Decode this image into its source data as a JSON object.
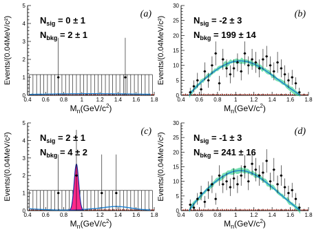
{
  "chart_data": [
    {
      "type": "scatter",
      "panel": "(a)",
      "xlabel": "M",
      "xlabel_sub": "n",
      "xlabel_unit": "(GeV/c",
      "xlabel_sup": "2",
      "xlabel_end": ")",
      "ylabel": "Events/(0.04MeV/c²)",
      "xlim": [
        0.4,
        1.8
      ],
      "ylim": [
        0,
        5
      ],
      "xticks": [
        "0.4",
        "0.6",
        "0.8",
        "1",
        "1.2",
        "1.4",
        "1.6",
        "1.8"
      ],
      "yticks": [
        "0",
        "1",
        "2",
        "3",
        "4",
        "5"
      ],
      "annotations": {
        "nsig_label": "N",
        "nsig_sub": "sig",
        "nsig_value": "=     0  ±  1",
        "nbkg_label": "N",
        "nbkg_sub": "bkg",
        "nbkg_value": "=     2  ±  1"
      },
      "points": [
        {
          "x": 0.74,
          "y": 1.0,
          "err": 2.2
        },
        {
          "x": 1.48,
          "y": 1.0,
          "err": 2.2
        }
      ],
      "zero_err_band": 1.15,
      "fit": "flat",
      "fit_level": 0.08
    },
    {
      "type": "scatter",
      "panel": "(b)",
      "xlabel": "M",
      "xlabel_sub": "n",
      "xlabel_unit": "(GeV/c",
      "xlabel_sup": "2",
      "xlabel_end": ")",
      "ylabel": "Events/(0.04MeV/c²)",
      "xlim": [
        0.4,
        1.8
      ],
      "ylim": [
        0,
        30
      ],
      "xticks": [
        "0.4",
        "0.6",
        "0.8",
        "1",
        "1.2",
        "1.4",
        "1.6",
        "1.8"
      ],
      "yticks": [
        "0",
        "5",
        "10",
        "15",
        "20",
        "25",
        "30"
      ],
      "annotations": {
        "nsig_label": "N",
        "nsig_sub": "sig",
        "nsig_value": "=     -2  ±  3",
        "nbkg_label": "N",
        "nbkg_sub": "bkg",
        "nbkg_value": "=   199  ±  14"
      },
      "points": [
        {
          "x": 0.5,
          "y": 1,
          "err": 1.5
        },
        {
          "x": 0.54,
          "y": 3,
          "err": 2
        },
        {
          "x": 0.58,
          "y": 5,
          "err": 2.5
        },
        {
          "x": 0.62,
          "y": 2,
          "err": 2
        },
        {
          "x": 0.66,
          "y": 8,
          "err": 3
        },
        {
          "x": 0.7,
          "y": 5,
          "err": 2.5
        },
        {
          "x": 0.74,
          "y": 10,
          "err": 3
        },
        {
          "x": 0.78,
          "y": 14,
          "err": 4
        },
        {
          "x": 0.82,
          "y": 4,
          "err": 2.5
        },
        {
          "x": 0.86,
          "y": 12,
          "err": 3.5
        },
        {
          "x": 0.9,
          "y": 9,
          "err": 3
        },
        {
          "x": 0.94,
          "y": 7,
          "err": 3
        },
        {
          "x": 0.98,
          "y": 9,
          "err": 3
        },
        {
          "x": 1.02,
          "y": 11,
          "err": 3
        },
        {
          "x": 1.06,
          "y": 8,
          "err": 3
        },
        {
          "x": 1.1,
          "y": 14,
          "err": 4
        },
        {
          "x": 1.14,
          "y": 10,
          "err": 3
        },
        {
          "x": 1.18,
          "y": 12,
          "err": 3.5
        },
        {
          "x": 1.22,
          "y": 11,
          "err": 3.5
        },
        {
          "x": 1.26,
          "y": 9,
          "err": 3
        },
        {
          "x": 1.3,
          "y": 12,
          "err": 3.5
        },
        {
          "x": 1.34,
          "y": 13,
          "err": 3.5
        },
        {
          "x": 1.38,
          "y": 10,
          "err": 3
        },
        {
          "x": 1.42,
          "y": 8,
          "err": 3
        },
        {
          "x": 1.46,
          "y": 11,
          "err": 3.5
        },
        {
          "x": 1.5,
          "y": 9,
          "err": 3
        },
        {
          "x": 1.54,
          "y": 7,
          "err": 3
        },
        {
          "x": 1.58,
          "y": 5,
          "err": 2.5
        },
        {
          "x": 1.62,
          "y": 6,
          "err": 2.5
        },
        {
          "x": 1.66,
          "y": 4,
          "err": 2
        },
        {
          "x": 1.7,
          "y": 1,
          "err": 1.5
        }
      ],
      "fit": "hump",
      "fit_peak": 10.5,
      "fit_start": 0.49,
      "fit_end": 1.71
    },
    {
      "type": "scatter",
      "panel": "(c)",
      "xlabel": "M",
      "xlabel_sub": "n",
      "xlabel_unit": "(GeV/c",
      "xlabel_sup": "2",
      "xlabel_end": ")",
      "ylabel": "Events/(0.04MeV/c²)",
      "xlim": [
        0.4,
        1.8
      ],
      "ylim": [
        0,
        5
      ],
      "xticks": [
        "0.4",
        "0.6",
        "0.8",
        "1",
        "1.2",
        "1.4",
        "1.6",
        "1.8"
      ],
      "yticks": [
        "0",
        "1",
        "2",
        "3",
        "4",
        "5"
      ],
      "annotations": {
        "nsig_label": "N",
        "nsig_sub": "sig",
        "nsig_value": "=     2  ±  1",
        "nbkg_label": "N",
        "nbkg_sub": "bkg",
        "nbkg_value": "=     4  ±  2"
      },
      "points": [
        {
          "x": 0.74,
          "y": 1.0,
          "err": 2.2
        },
        {
          "x": 0.94,
          "y": 2.0,
          "err": 2.6
        },
        {
          "x": 1.22,
          "y": 1.0,
          "err": 2.2
        },
        {
          "x": 1.38,
          "y": 1.0,
          "err": 2.2
        }
      ],
      "zero_err_band": 1.15,
      "fit": "peak",
      "peak_x": 0.94,
      "peak_height": 2.65,
      "fit_level": 0.15
    },
    {
      "type": "scatter",
      "panel": "(d)",
      "xlabel": "M",
      "xlabel_sub": "n",
      "xlabel_unit": "(GeV/c",
      "xlabel_sup": "2",
      "xlabel_end": ")",
      "ylabel": "Events/(0.04MeV/c²)",
      "xlim": [
        0.4,
        1.8
      ],
      "ylim": [
        0,
        30
      ],
      "xticks": [
        "0.4",
        "0.6",
        "0.8",
        "1",
        "1.2",
        "1.4",
        "1.6",
        "1.8"
      ],
      "yticks": [
        "0",
        "5",
        "10",
        "15",
        "20",
        "25",
        "30"
      ],
      "annotations": {
        "nsig_label": "N",
        "nsig_sub": "sig",
        "nsig_value": "=     -1  ±  3",
        "nbkg_label": "N",
        "nbkg_sub": "bkg",
        "nbkg_value": "=   241  ±  16"
      },
      "points": [
        {
          "x": 0.5,
          "y": 2,
          "err": 1.8
        },
        {
          "x": 0.54,
          "y": 1,
          "err": 1.5
        },
        {
          "x": 0.58,
          "y": 4,
          "err": 2
        },
        {
          "x": 0.62,
          "y": 6,
          "err": 2.5
        },
        {
          "x": 0.66,
          "y": 3,
          "err": 2
        },
        {
          "x": 0.7,
          "y": 7,
          "err": 3
        },
        {
          "x": 0.74,
          "y": 9,
          "err": 3
        },
        {
          "x": 0.78,
          "y": 4,
          "err": 2
        },
        {
          "x": 0.82,
          "y": 12,
          "err": 3.5
        },
        {
          "x": 0.86,
          "y": 9,
          "err": 3
        },
        {
          "x": 0.9,
          "y": 10,
          "err": 3
        },
        {
          "x": 0.94,
          "y": 8,
          "err": 3
        },
        {
          "x": 0.98,
          "y": 11,
          "err": 3.5
        },
        {
          "x": 1.02,
          "y": 9,
          "err": 3
        },
        {
          "x": 1.06,
          "y": 12,
          "err": 3.5
        },
        {
          "x": 1.1,
          "y": 15,
          "err": 4
        },
        {
          "x": 1.14,
          "y": 10,
          "err": 3
        },
        {
          "x": 1.18,
          "y": 16,
          "err": 4
        },
        {
          "x": 1.22,
          "y": 14,
          "err": 4
        },
        {
          "x": 1.26,
          "y": 12,
          "err": 3.5
        },
        {
          "x": 1.3,
          "y": 13,
          "err": 3.5
        },
        {
          "x": 1.34,
          "y": 17,
          "err": 4
        },
        {
          "x": 1.38,
          "y": 10,
          "err": 3
        },
        {
          "x": 1.42,
          "y": 14,
          "err": 4
        },
        {
          "x": 1.46,
          "y": 9,
          "err": 3
        },
        {
          "x": 1.5,
          "y": 12,
          "err": 3.5
        },
        {
          "x": 1.54,
          "y": 8,
          "err": 3
        },
        {
          "x": 1.58,
          "y": 6,
          "err": 2.5
        },
        {
          "x": 1.62,
          "y": 7,
          "err": 2.5
        },
        {
          "x": 1.66,
          "y": 4,
          "err": 2
        },
        {
          "x": 1.7,
          "y": 1,
          "err": 1.5
        }
      ],
      "fit": "hump",
      "fit_peak": 12.5,
      "fit_start": 0.49,
      "fit_end": 1.71
    }
  ]
}
